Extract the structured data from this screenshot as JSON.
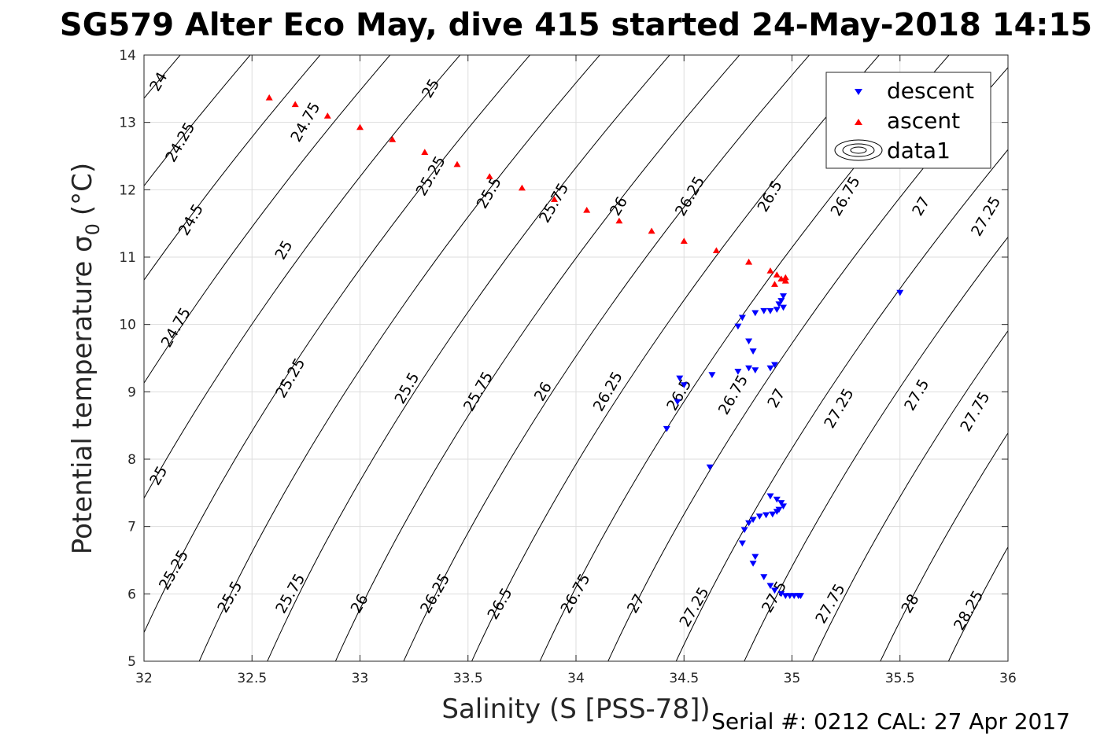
{
  "chart_data": {
    "type": "scatter",
    "title": "SG579 Alter Eco May, dive 415 started 24-May-2018 14:15",
    "xlabel": "Salinity (S [PSS-78])",
    "ylabel_main": "Potential temperature σ",
    "ylabel_sub": "0",
    "ylabel_unit": "(°C)",
    "xlim": [
      32,
      36
    ],
    "ylim": [
      5,
      14
    ],
    "xticks": [
      32,
      32.5,
      33,
      33.5,
      34,
      34.5,
      35,
      35.5,
      36
    ],
    "xtick_labels": [
      "32",
      "32.5",
      "33",
      "33.5",
      "34",
      "34.5",
      "35",
      "35.5",
      "36"
    ],
    "yticks": [
      5,
      6,
      7,
      8,
      9,
      10,
      11,
      12,
      13,
      14
    ],
    "ytick_labels": [
      "5",
      "6",
      "7",
      "8",
      "9",
      "10",
      "11",
      "12",
      "13",
      "14"
    ],
    "grid": true,
    "legend_position": "top-right",
    "legend": [
      "descent",
      "ascent",
      "data1"
    ],
    "footer": "Serial #: 0212  CAL: 27 Apr 2017",
    "colors": {
      "descent": "#0000ff",
      "ascent": "#ff0000",
      "contour": "#000000",
      "grid": "#dddddd",
      "axis": "#262626"
    },
    "contours": {
      "levels": [
        24,
        24.25,
        24.5,
        24.75,
        25,
        25.25,
        25.5,
        25.75,
        26,
        26.25,
        26.5,
        26.75,
        27,
        27.25,
        27.5,
        27.75,
        28,
        28.25
      ],
      "labels": [
        {
          "text": "24",
          "s": 32.07,
          "t": 13.6
        },
        {
          "text": "24.25",
          "s": 32.17,
          "t": 12.7
        },
        {
          "text": "24.5",
          "s": 32.22,
          "t": 11.55
        },
        {
          "text": "24.75",
          "s": 32.15,
          "t": 9.95
        },
        {
          "text": "25",
          "s": 32.07,
          "t": 7.75
        },
        {
          "text": "25.25",
          "s": 32.14,
          "t": 6.35
        },
        {
          "text": "24.75",
          "s": 32.75,
          "t": 13.0
        },
        {
          "text": "25",
          "s": 32.65,
          "t": 11.1
        },
        {
          "text": "25.25",
          "s": 32.68,
          "t": 9.2
        },
        {
          "text": "25.5",
          "s": 32.4,
          "t": 5.95
        },
        {
          "text": "25",
          "s": 33.33,
          "t": 13.5
        },
        {
          "text": "25.25",
          "s": 33.33,
          "t": 12.2
        },
        {
          "text": "25.5",
          "s": 33.22,
          "t": 9.05
        },
        {
          "text": "25.75",
          "s": 32.68,
          "t": 6.0
        },
        {
          "text": "25.5",
          "s": 33.6,
          "t": 11.95
        },
        {
          "text": "25.75",
          "s": 33.55,
          "t": 9.0
        },
        {
          "text": "26",
          "s": 33.0,
          "t": 5.85
        },
        {
          "text": "25.75",
          "s": 33.9,
          "t": 11.8
        },
        {
          "text": "26",
          "s": 33.85,
          "t": 9.0
        },
        {
          "text": "26.25",
          "s": 33.35,
          "t": 6.0
        },
        {
          "text": "26",
          "s": 34.2,
          "t": 11.75
        },
        {
          "text": "26.25",
          "s": 34.15,
          "t": 9.0
        },
        {
          "text": "26.5",
          "s": 33.65,
          "t": 5.85
        },
        {
          "text": "26.25",
          "s": 34.53,
          "t": 11.9
        },
        {
          "text": "26.5",
          "s": 34.48,
          "t": 8.95
        },
        {
          "text": "26.75",
          "s": 34.0,
          "t": 6.0
        },
        {
          "text": "26.5",
          "s": 34.9,
          "t": 11.9
        },
        {
          "text": "26.75",
          "s": 34.73,
          "t": 8.95
        },
        {
          "text": "27",
          "s": 34.28,
          "t": 5.85
        },
        {
          "text": "26.75",
          "s": 35.25,
          "t": 11.9
        },
        {
          "text": "27",
          "s": 34.93,
          "t": 8.9
        },
        {
          "text": "27.25",
          "s": 34.55,
          "t": 5.8
        },
        {
          "text": "27",
          "s": 35.6,
          "t": 11.75
        },
        {
          "text": "27.25",
          "s": 35.22,
          "t": 8.75
        },
        {
          "text": "27.5",
          "s": 34.92,
          "t": 5.95
        },
        {
          "text": "27.25",
          "s": 35.9,
          "t": 11.6
        },
        {
          "text": "27.5",
          "s": 35.58,
          "t": 8.95
        },
        {
          "text": "27.75",
          "s": 35.18,
          "t": 5.85
        },
        {
          "text": "27.75",
          "s": 35.85,
          "t": 8.7
        },
        {
          "text": "28",
          "s": 35.55,
          "t": 5.85
        },
        {
          "text": "28.25",
          "s": 35.82,
          "t": 5.75
        }
      ]
    },
    "series": [
      {
        "name": "descent",
        "marker": "triangle-down",
        "points": [
          [
            35.5,
            10.47
          ],
          [
            34.96,
            10.42
          ],
          [
            34.95,
            10.35
          ],
          [
            34.94,
            10.3
          ],
          [
            34.96,
            10.25
          ],
          [
            34.93,
            10.22
          ],
          [
            34.9,
            10.2
          ],
          [
            34.87,
            10.2
          ],
          [
            34.83,
            10.17
          ],
          [
            34.77,
            10.1
          ],
          [
            34.75,
            9.97
          ],
          [
            34.8,
            9.75
          ],
          [
            34.82,
            9.6
          ],
          [
            34.8,
            9.35
          ],
          [
            34.75,
            9.3
          ],
          [
            34.83,
            9.32
          ],
          [
            34.9,
            9.35
          ],
          [
            34.92,
            9.4
          ],
          [
            34.63,
            9.25
          ],
          [
            34.48,
            9.2
          ],
          [
            34.5,
            9.1
          ],
          [
            34.47,
            8.85
          ],
          [
            34.42,
            8.45
          ],
          [
            34.62,
            7.88
          ],
          [
            34.9,
            7.45
          ],
          [
            34.93,
            7.4
          ],
          [
            34.95,
            7.35
          ],
          [
            34.96,
            7.3
          ],
          [
            34.94,
            7.25
          ],
          [
            34.93,
            7.22
          ],
          [
            34.91,
            7.18
          ],
          [
            34.88,
            7.17
          ],
          [
            34.85,
            7.15
          ],
          [
            34.82,
            7.1
          ],
          [
            34.8,
            7.05
          ],
          [
            34.78,
            6.95
          ],
          [
            34.77,
            6.75
          ],
          [
            34.83,
            6.55
          ],
          [
            34.82,
            6.45
          ],
          [
            34.87,
            6.25
          ],
          [
            34.9,
            6.12
          ],
          [
            34.92,
            6.05
          ],
          [
            34.95,
            6.0
          ],
          [
            34.97,
            5.97
          ],
          [
            34.99,
            5.97
          ],
          [
            35.01,
            5.97
          ],
          [
            35.03,
            5.97
          ],
          [
            35.04,
            5.97
          ]
        ]
      },
      {
        "name": "ascent",
        "marker": "triangle-up",
        "points": [
          [
            32.58,
            13.37
          ],
          [
            32.7,
            13.27
          ],
          [
            32.85,
            13.1
          ],
          [
            33.0,
            12.93
          ],
          [
            33.15,
            12.75
          ],
          [
            33.3,
            12.56
          ],
          [
            33.45,
            12.38
          ],
          [
            33.6,
            12.2
          ],
          [
            33.75,
            12.03
          ],
          [
            33.9,
            11.86
          ],
          [
            34.05,
            11.7
          ],
          [
            34.2,
            11.54
          ],
          [
            34.35,
            11.39
          ],
          [
            34.5,
            11.24
          ],
          [
            34.65,
            11.1
          ],
          [
            34.8,
            10.93
          ],
          [
            34.9,
            10.8
          ],
          [
            34.93,
            10.74
          ],
          [
            34.97,
            10.7
          ],
          [
            34.95,
            10.68
          ],
          [
            34.97,
            10.65
          ],
          [
            34.92,
            10.6
          ]
        ]
      }
    ]
  }
}
